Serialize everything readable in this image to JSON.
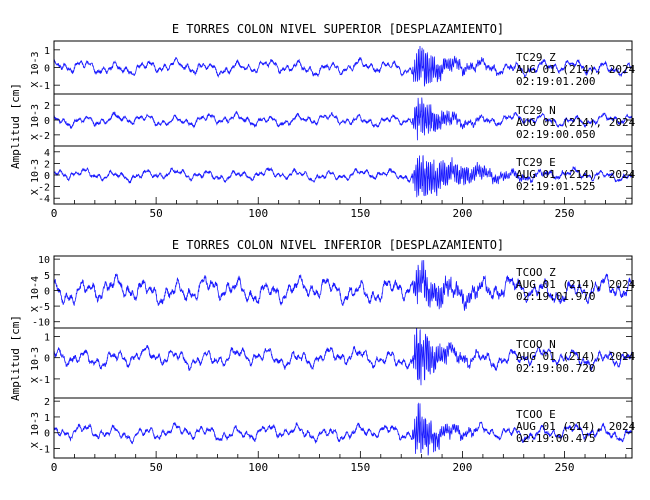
{
  "chart_data": [
    {
      "type": "line",
      "title": "E TORRES COLON NIVEL SUPERIOR [DESPLAZAMIENTO]",
      "ylabel": "Amplitud [cm]",
      "x_ticks": [
        "0",
        "50",
        "100",
        "150",
        "200",
        "250"
      ],
      "xlim": [
        0,
        283
      ],
      "panels": [
        {
          "scale_label": "X 10-3",
          "y_ticks": [
            "-1",
            "0",
            "1"
          ],
          "ylim": [
            -1.5,
            1.5
          ],
          "annotation": [
            "TC29   Z",
            "AUG 01 (214), 2024",
            "02:19:01.200"
          ],
          "series": {
            "color": "#1a1aff",
            "quiet_amp": 0.45,
            "event_amp": 1.2,
            "event_start": 175,
            "event_peak": 178,
            "decay": 14,
            "seed": 11
          }
        },
        {
          "scale_label": "X 10-3",
          "y_ticks": [
            "-2",
            "0",
            "2"
          ],
          "ylim": [
            -3.5,
            3.5
          ],
          "annotation": [
            "TC29   N",
            "AUG 01 (214), 2024",
            "02:19:00.050"
          ],
          "series": {
            "color": "#1a1aff",
            "quiet_amp": 0.9,
            "event_amp": 3.0,
            "event_start": 175,
            "event_peak": 178,
            "decay": 12,
            "seed": 23
          }
        },
        {
          "scale_label": "X 10-3",
          "y_ticks": [
            "-4",
            "-2",
            "0",
            "2",
            "4"
          ],
          "ylim": [
            -5,
            5
          ],
          "annotation": [
            "TC29   E",
            "AUG 01 (214), 2024",
            "02:19:01.525"
          ],
          "series": {
            "color": "#1a1aff",
            "quiet_amp": 1.1,
            "event_amp": 4.4,
            "event_start": 175,
            "event_peak": 178,
            "decay": 22,
            "seed": 37
          }
        }
      ]
    },
    {
      "type": "line",
      "title": "E TORRES COLON NIVEL INFERIOR [DESPLAZAMIENTO]",
      "ylabel": "Amplitud [cm]",
      "x_ticks": [
        "0",
        "50",
        "100",
        "150",
        "200",
        "250"
      ],
      "xlim": [
        0,
        283
      ],
      "panels": [
        {
          "scale_label": "X 10-4",
          "y_ticks": [
            "-10",
            "-5",
            "0",
            "5",
            "10"
          ],
          "ylim": [
            -12,
            11
          ],
          "annotation": [
            "TCOO   Z",
            "AUG 01 (214), 2024",
            "02:19:01.970"
          ],
          "series": {
            "color": "#1a1aff",
            "quiet_amp": 4.5,
            "event_amp": 6.0,
            "event_start": 175,
            "event_peak": 178,
            "decay": 18,
            "seed": 53
          }
        },
        {
          "scale_label": "X 10-3",
          "y_ticks": [
            "-1",
            "0",
            "1"
          ],
          "ylim": [
            -1.9,
            1.4
          ],
          "annotation": [
            "TCOO   N",
            "AUG 01 (214), 2024",
            "02:19:00.720"
          ],
          "series": {
            "color": "#1a1aff",
            "quiet_amp": 0.5,
            "event_amp": 1.5,
            "event_start": 175,
            "event_peak": 178,
            "decay": 10,
            "seed": 71
          }
        },
        {
          "scale_label": "X 10-3",
          "y_ticks": [
            "-1",
            "0",
            "1",
            "2"
          ],
          "ylim": [
            -1.6,
            2.2
          ],
          "annotation": [
            "TCOO   E",
            "AUG 01 (214), 2024",
            "02:19:00.475"
          ],
          "series": {
            "color": "#1a1aff",
            "quiet_amp": 0.55,
            "event_amp": 1.8,
            "event_start": 175,
            "event_peak": 178,
            "decay": 10,
            "seed": 89
          }
        }
      ]
    }
  ]
}
